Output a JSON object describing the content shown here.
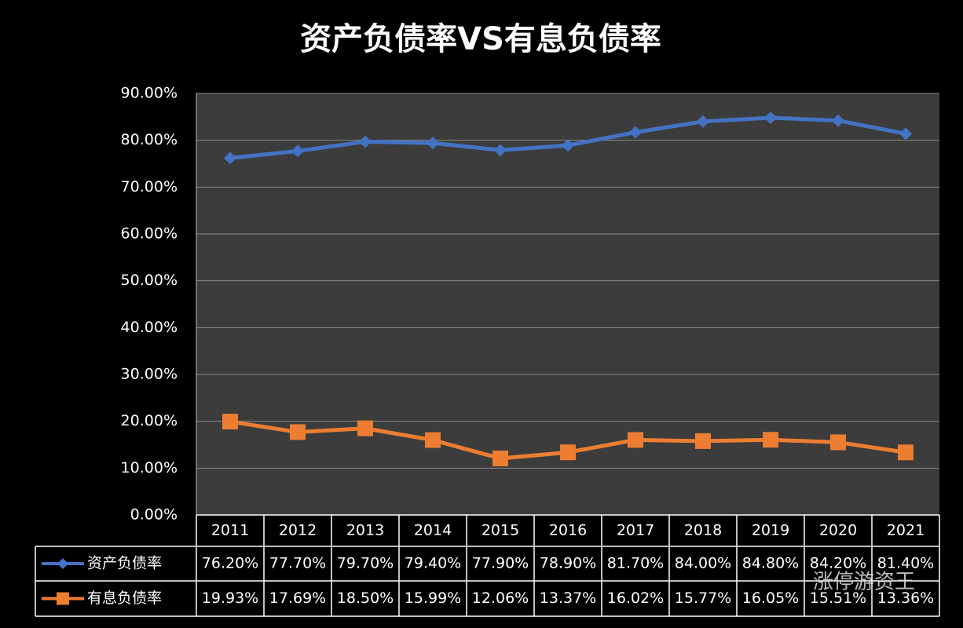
{
  "chart_data": {
    "type": "line",
    "title": "资产负债率VS有息负债率",
    "categories": [
      "2011",
      "2012",
      "2013",
      "2014",
      "2015",
      "2016",
      "2017",
      "2018",
      "2019",
      "2020",
      "2021"
    ],
    "series": [
      {
        "name": "资产负债率",
        "color": "#4472c4",
        "marker": "diamond",
        "values": [
          76.2,
          77.7,
          79.7,
          79.4,
          77.9,
          78.9,
          81.7,
          84.0,
          84.8,
          84.2,
          81.4
        ],
        "value_labels": [
          "76.20%",
          "77.70%",
          "79.70%",
          "79.40%",
          "77.90%",
          "78.90%",
          "81.70%",
          "84.00%",
          "84.80%",
          "84.20%",
          "81.40%"
        ]
      },
      {
        "name": "有息负债率",
        "color": "#ed7d31",
        "marker": "square",
        "values": [
          19.93,
          17.69,
          18.5,
          15.99,
          12.06,
          13.37,
          16.02,
          15.77,
          16.05,
          15.51,
          13.36
        ],
        "value_labels": [
          "19.93%",
          "17.69%",
          "18.50%",
          "15.99%",
          "12.06%",
          "13.37%",
          "16.02%",
          "15.77%",
          "16.05%",
          "15.51%",
          "13.36%"
        ]
      }
    ],
    "ylim": [
      0,
      90
    ],
    "yticks": [
      {
        "value": 0,
        "label": "0.00%"
      },
      {
        "value": 10,
        "label": "10.00%"
      },
      {
        "value": 20,
        "label": "20.00%"
      },
      {
        "value": 30,
        "label": "30.00%"
      },
      {
        "value": 40,
        "label": "40.00%"
      },
      {
        "value": 50,
        "label": "50.00%"
      },
      {
        "value": 60,
        "label": "60.00%"
      },
      {
        "value": 70,
        "label": "70.00%"
      },
      {
        "value": 80,
        "label": "80.00%"
      },
      {
        "value": 90,
        "label": "90.00%"
      }
    ],
    "grid": true,
    "watermark": "涨停游资王"
  }
}
